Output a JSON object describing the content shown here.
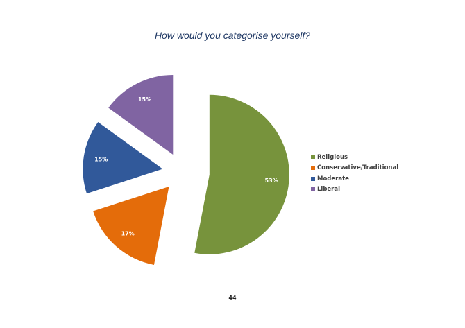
{
  "chart_data": {
    "type": "pie",
    "title": "How would you categorise yourself?",
    "categories": [
      "Religious",
      "Conservative/Traditional",
      "Moderate",
      "Liberal"
    ],
    "values": [
      53,
      17,
      15,
      15
    ],
    "data_labels": [
      "53%",
      "17%",
      "15%",
      "15%"
    ],
    "colors": [
      "#77933C",
      "#E46C0A",
      "#31599A",
      "#8064A2"
    ],
    "exploded": true,
    "legend_position": "right"
  },
  "page": {
    "number": "44"
  }
}
